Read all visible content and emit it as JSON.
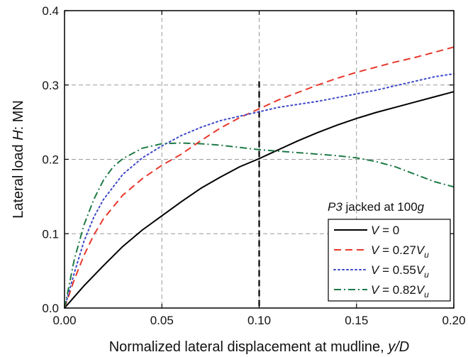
{
  "chart_data": {
    "type": "line",
    "xlabel_prefix": "Normalized lateral displacement at mudline, ",
    "xlabel_var": "y/D",
    "ylabel_prefix": "Lateral load ",
    "ylabel_var": "H",
    "ylabel_suffix": ": MN",
    "xlim": [
      0.0,
      0.2
    ],
    "ylim": [
      0.0,
      0.4
    ],
    "xticks": [
      "0.00",
      "0.05",
      "0.10",
      "0.15",
      "0.20"
    ],
    "yticks": [
      "0.0",
      "0.1",
      "0.2",
      "0.3",
      "0.4"
    ],
    "grid": true,
    "legend_position": "bottom-right",
    "annotation": {
      "pile": "P3",
      "middle": " jacked at 100",
      "g": "g"
    },
    "reference_line_x": 0.1,
    "series": [
      {
        "name": "V = 0",
        "label_parts": {
          "v": "V",
          "eq": " = ",
          "coef": "0",
          "sub": ""
        },
        "color": "#000000",
        "dash": "solid",
        "x": [
          0,
          0.005,
          0.01,
          0.02,
          0.03,
          0.04,
          0.05,
          0.06,
          0.07,
          0.08,
          0.09,
          0.1,
          0.11,
          0.12,
          0.13,
          0.14,
          0.15,
          0.16,
          0.17,
          0.18,
          0.19,
          0.2
        ],
        "y": [
          0,
          0.015,
          0.03,
          0.057,
          0.083,
          0.105,
          0.124,
          0.143,
          0.161,
          0.176,
          0.19,
          0.201,
          0.213,
          0.225,
          0.236,
          0.246,
          0.255,
          0.263,
          0.27,
          0.277,
          0.284,
          0.291
        ]
      },
      {
        "name": "V = 0.27Vu",
        "label_parts": {
          "v": "V",
          "eq": " = ",
          "coef": "0.27",
          "sub": "u"
        },
        "color": "#e8382c",
        "dash": "dashed",
        "x": [
          0,
          0.005,
          0.01,
          0.015,
          0.02,
          0.03,
          0.04,
          0.05,
          0.06,
          0.07,
          0.08,
          0.09,
          0.1,
          0.11,
          0.12,
          0.13,
          0.14,
          0.15,
          0.16,
          0.17,
          0.18,
          0.19,
          0.2
        ],
        "y": [
          0,
          0.038,
          0.071,
          0.098,
          0.12,
          0.152,
          0.174,
          0.192,
          0.207,
          0.225,
          0.242,
          0.256,
          0.268,
          0.28,
          0.29,
          0.3,
          0.309,
          0.317,
          0.324,
          0.331,
          0.337,
          0.344,
          0.351
        ]
      },
      {
        "name": "V = 0.55Vu",
        "label_parts": {
          "v": "V",
          "eq": " = ",
          "coef": "0.55",
          "sub": "u"
        },
        "color": "#3b47c8",
        "dash": "dotted",
        "x": [
          0,
          0.005,
          0.01,
          0.015,
          0.02,
          0.03,
          0.04,
          0.05,
          0.06,
          0.07,
          0.08,
          0.09,
          0.1,
          0.11,
          0.12,
          0.13,
          0.14,
          0.15,
          0.16,
          0.17,
          0.18,
          0.19,
          0.2
        ],
        "y": [
          0,
          0.047,
          0.09,
          0.122,
          0.146,
          0.18,
          0.202,
          0.218,
          0.232,
          0.243,
          0.252,
          0.258,
          0.264,
          0.27,
          0.274,
          0.278,
          0.283,
          0.288,
          0.293,
          0.299,
          0.305,
          0.311,
          0.315
        ]
      },
      {
        "name": "V = 0.82Vu",
        "label_parts": {
          "v": "V",
          "eq": " = ",
          "coef": "0.82",
          "sub": "u"
        },
        "color": "#1e7a46",
        "dash": "dashdot",
        "x": [
          0,
          0.005,
          0.01,
          0.015,
          0.02,
          0.025,
          0.03,
          0.04,
          0.05,
          0.06,
          0.07,
          0.08,
          0.09,
          0.1,
          0.11,
          0.12,
          0.13,
          0.14,
          0.15,
          0.16,
          0.17,
          0.18,
          0.19,
          0.2
        ],
        "y": [
          0,
          0.065,
          0.112,
          0.146,
          0.172,
          0.19,
          0.201,
          0.215,
          0.221,
          0.222,
          0.221,
          0.219,
          0.216,
          0.213,
          0.211,
          0.209,
          0.207,
          0.205,
          0.202,
          0.197,
          0.19,
          0.18,
          0.17,
          0.163
        ]
      }
    ]
  }
}
